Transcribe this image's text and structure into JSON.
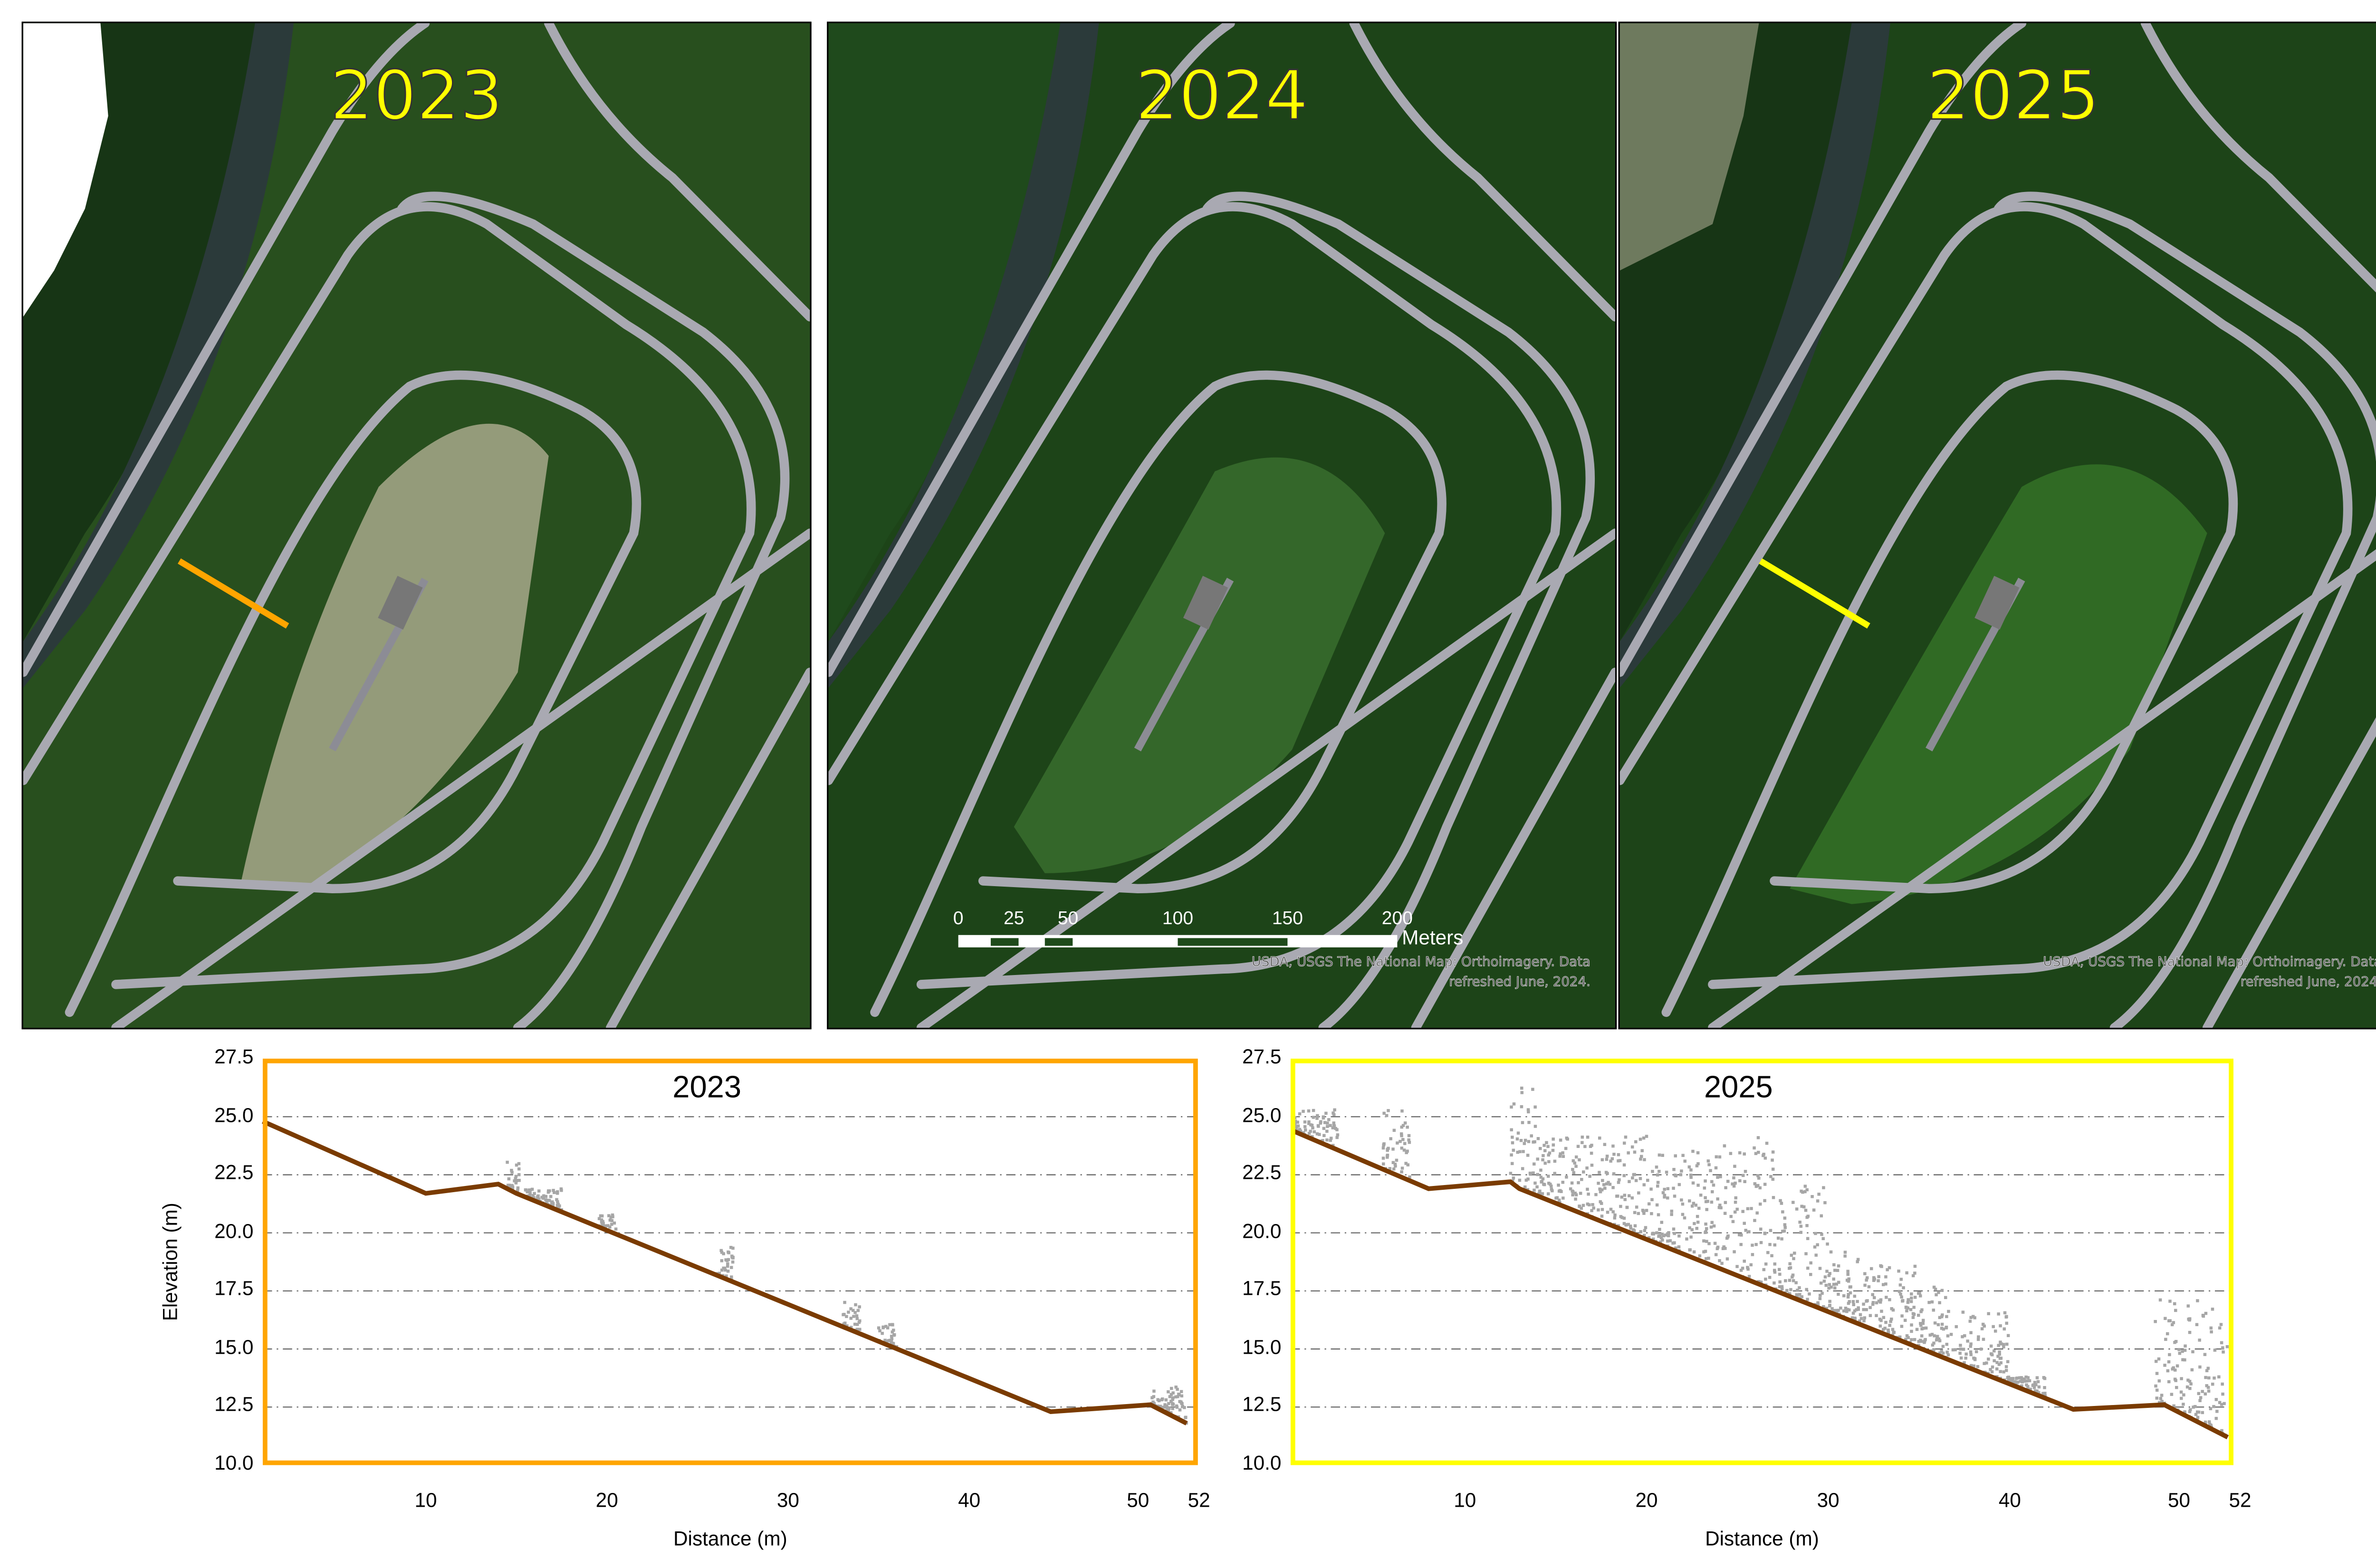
{
  "maps": [
    {
      "year": "2023",
      "transect_color": "#ffa500"
    },
    {
      "year": "2024",
      "attribution": [
        "USDA, USGS The National Map: Orthoimagery. Data",
        "refreshed June, 2024."
      ],
      "scalebar": {
        "labels": [
          "0",
          "25",
          "50",
          "100",
          "150",
          "200"
        ],
        "unit": "Meters"
      }
    },
    {
      "year": "2025",
      "transect_color": "#ffff00",
      "attribution": [
        "USDA, USGS The National Map: Orthoimagery. Data",
        "refreshed June, 2024."
      ]
    }
  ],
  "chart_data": [
    {
      "type": "scatter",
      "title": "2023",
      "frame_color": "#ffa500",
      "xlabel": "Distance (m)",
      "ylabel": "Elevation (m)",
      "xlim": [
        1,
        52
      ],
      "ylim": [
        10,
        27.5
      ],
      "xticks": [
        "10",
        "20",
        "30",
        "40",
        "50",
        "52"
      ],
      "yticks": [
        "10.0",
        "12.5",
        "15.0",
        "17.5",
        "20.0",
        "22.5",
        "25.0",
        "27.5"
      ],
      "ground": [
        [
          1,
          24.8
        ],
        [
          10,
          21.7
        ],
        [
          14,
          22.1
        ],
        [
          15,
          21.7
        ],
        [
          44.5,
          12.3
        ],
        [
          50,
          12.6
        ],
        [
          52,
          11.8
        ]
      ],
      "vegetation": [
        [
          14.5,
          15.2,
          23.2
        ],
        [
          15.5,
          17.5,
          21.9
        ],
        [
          19.5,
          20.5,
          20.8
        ],
        [
          26,
          27,
          19.4
        ],
        [
          33,
          34,
          17.1
        ],
        [
          35,
          36,
          16.1
        ],
        [
          50,
          52,
          13.4
        ]
      ],
      "ground_color": "#7a3b00",
      "vegetation_color": "#a6a6a6",
      "grid": true
    },
    {
      "type": "scatter",
      "title": "2025",
      "frame_color": "#ffff00",
      "xlabel": "Distance (m)",
      "ylabel": "",
      "xlim": [
        0.4,
        52
      ],
      "ylim": [
        10,
        27.5
      ],
      "xticks": [
        "10",
        "20",
        "30",
        "40",
        "50",
        "52"
      ],
      "yticks": [
        "10.0",
        "12.5",
        "15.0",
        "17.5",
        "20.0",
        "22.5",
        "25.0",
        "27.5"
      ],
      "ground": [
        [
          0.5,
          24.4
        ],
        [
          8,
          21.9
        ],
        [
          12.5,
          22.2
        ],
        [
          13,
          21.9
        ],
        [
          43.5,
          12.4
        ],
        [
          48.5,
          12.6
        ],
        [
          52,
          11.2
        ]
      ],
      "vegetation": [
        [
          0.5,
          3,
          25.3
        ],
        [
          5.5,
          7,
          25.4
        ],
        [
          12.5,
          14,
          26.5
        ],
        [
          14,
          20,
          24.2
        ],
        [
          20,
          24,
          23.6
        ],
        [
          24,
          27,
          24.3
        ],
        [
          27,
          30,
          22.2
        ],
        [
          30,
          32,
          19.2
        ],
        [
          32,
          35,
          18.6
        ],
        [
          35,
          37,
          17.7
        ],
        [
          37,
          40,
          16.6
        ],
        [
          40,
          42,
          13.8
        ],
        [
          48,
          52,
          17.3
        ]
      ],
      "ground_color": "#7a3b00",
      "vegetation_color": "#a6a6a6",
      "grid": true
    }
  ]
}
